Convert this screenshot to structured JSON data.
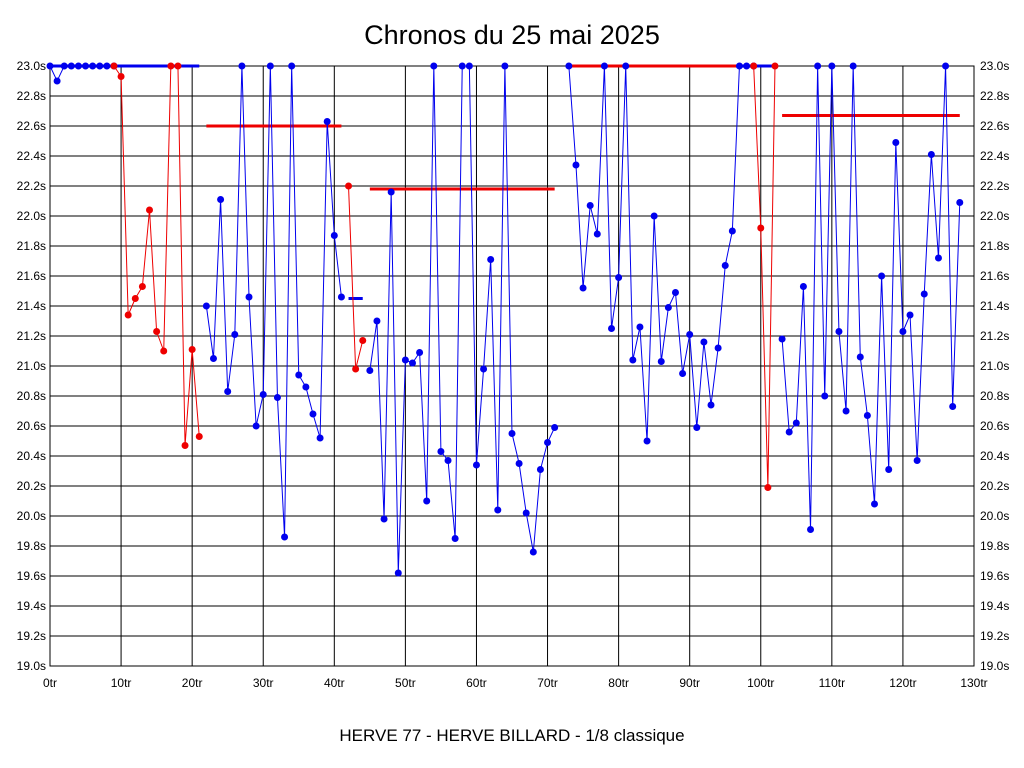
{
  "chart_data": {
    "type": "line",
    "title": "Chronos du 25 mai 2025",
    "subtitle": "HERVE 77 - HERVE BILLARD - 1/8 classique",
    "xlabel": "",
    "ylabel": "",
    "xlim": [
      0,
      130
    ],
    "ylim": [
      19.0,
      23.0
    ],
    "x_ticks": [
      {
        "value": 0,
        "label": "0tr"
      },
      {
        "value": 10,
        "label": "10tr"
      },
      {
        "value": 20,
        "label": "20tr"
      },
      {
        "value": 30,
        "label": "30tr"
      },
      {
        "value": 40,
        "label": "40tr"
      },
      {
        "value": 50,
        "label": "50tr"
      },
      {
        "value": 60,
        "label": "60tr"
      },
      {
        "value": 70,
        "label": "70tr"
      },
      {
        "value": 80,
        "label": "80tr"
      },
      {
        "value": 90,
        "label": "90tr"
      },
      {
        "value": 100,
        "label": "100tr"
      },
      {
        "value": 110,
        "label": "110tr"
      },
      {
        "value": 120,
        "label": "120tr"
      },
      {
        "value": 130,
        "label": "130tr"
      }
    ],
    "y_ticks": [
      {
        "value": 19.0,
        "label": "19.0s"
      },
      {
        "value": 19.2,
        "label": "19.2s"
      },
      {
        "value": 19.4,
        "label": "19.4s"
      },
      {
        "value": 19.6,
        "label": "19.6s"
      },
      {
        "value": 19.8,
        "label": "19.8s"
      },
      {
        "value": 20.0,
        "label": "20.0s"
      },
      {
        "value": 20.2,
        "label": "20.2s"
      },
      {
        "value": 20.4,
        "label": "20.4s"
      },
      {
        "value": 20.6,
        "label": "20.6s"
      },
      {
        "value": 20.8,
        "label": "20.8s"
      },
      {
        "value": 21.0,
        "label": "21.0s"
      },
      {
        "value": 21.2,
        "label": "21.2s"
      },
      {
        "value": 21.4,
        "label": "21.4s"
      },
      {
        "value": 21.6,
        "label": "21.6s"
      },
      {
        "value": 21.8,
        "label": "21.8s"
      },
      {
        "value": 22.0,
        "label": "22.0s"
      },
      {
        "value": 22.2,
        "label": "22.2s"
      },
      {
        "value": 22.4,
        "label": "22.4s"
      },
      {
        "value": 22.6,
        "label": "22.6s"
      },
      {
        "value": 22.8,
        "label": "22.8s"
      },
      {
        "value": 23.0,
        "label": "23.0s"
      }
    ],
    "grid": true,
    "colors": {
      "blue": "#0000ee",
      "red": "#ee0000",
      "grid": "#000000"
    },
    "series": [
      {
        "color": "#0000ee",
        "points": [
          [
            0,
            23.0
          ],
          [
            1,
            22.9
          ],
          [
            2,
            23.0
          ],
          [
            3,
            23.0
          ],
          [
            4,
            23.0
          ],
          [
            5,
            23.0
          ],
          [
            6,
            23.0
          ],
          [
            7,
            23.0
          ],
          [
            8,
            23.0
          ],
          [
            9,
            23.0
          ]
        ]
      },
      {
        "color": "#ee0000",
        "points": [
          [
            9,
            23.0
          ],
          [
            10,
            22.93
          ],
          [
            11,
            21.34
          ],
          [
            12,
            21.45
          ],
          [
            13,
            21.53
          ],
          [
            14,
            22.04
          ],
          [
            15,
            21.23
          ],
          [
            16,
            21.1
          ],
          [
            17,
            23.0
          ],
          [
            18,
            23.0
          ],
          [
            19,
            20.47
          ],
          [
            20,
            21.11
          ],
          [
            21,
            20.53
          ]
        ]
      },
      {
        "color": "#0000ee",
        "points": [
          [
            22,
            21.4
          ],
          [
            23,
            21.05
          ],
          [
            24,
            22.11
          ],
          [
            25,
            20.83
          ],
          [
            26,
            21.21
          ],
          [
            27,
            23.0
          ],
          [
            28,
            21.46
          ],
          [
            29,
            20.6
          ],
          [
            30,
            20.81
          ],
          [
            31,
            23.0
          ],
          [
            32,
            20.79
          ],
          [
            33,
            19.86
          ],
          [
            34,
            23.0
          ],
          [
            35,
            20.94
          ],
          [
            36,
            20.86
          ],
          [
            37,
            20.68
          ],
          [
            38,
            20.52
          ],
          [
            39,
            22.63
          ],
          [
            40,
            21.87
          ],
          [
            41,
            21.46
          ]
        ]
      },
      {
        "color": "#ee0000",
        "points": [
          [
            42,
            22.2
          ],
          [
            43,
            20.98
          ],
          [
            44,
            21.17
          ]
        ]
      },
      {
        "color": "#0000ee",
        "points": [
          [
            45,
            20.97
          ],
          [
            46,
            21.3
          ],
          [
            47,
            19.98
          ],
          [
            48,
            22.16
          ],
          [
            49,
            19.62
          ],
          [
            50,
            21.04
          ],
          [
            51,
            21.02
          ],
          [
            52,
            21.09
          ],
          [
            53,
            20.1
          ],
          [
            54,
            23.0
          ],
          [
            55,
            20.43
          ],
          [
            56,
            20.37
          ],
          [
            57,
            19.85
          ],
          [
            58,
            23.0
          ],
          [
            59,
            23.0
          ],
          [
            60,
            20.34
          ],
          [
            61,
            20.98
          ],
          [
            62,
            21.71
          ],
          [
            63,
            20.04
          ],
          [
            64,
            23.0
          ],
          [
            65,
            20.55
          ],
          [
            66,
            20.35
          ],
          [
            67,
            20.02
          ],
          [
            68,
            19.76
          ],
          [
            69,
            20.31
          ],
          [
            70,
            20.49
          ],
          [
            71,
            20.59
          ]
        ]
      },
      {
        "color": "#0000ee",
        "points": [
          [
            73,
            23.0
          ],
          [
            74,
            22.34
          ],
          [
            75,
            21.52
          ],
          [
            76,
            22.07
          ],
          [
            77,
            21.88
          ],
          [
            78,
            23.0
          ],
          [
            79,
            21.25
          ],
          [
            80,
            21.59
          ],
          [
            81,
            23.0
          ],
          [
            82,
            21.04
          ],
          [
            83,
            21.26
          ],
          [
            84,
            20.5
          ],
          [
            85,
            22.0
          ],
          [
            86,
            21.03
          ],
          [
            87,
            21.39
          ],
          [
            88,
            21.49
          ],
          [
            89,
            20.95
          ],
          [
            90,
            21.21
          ],
          [
            91,
            20.59
          ],
          [
            92,
            21.16
          ],
          [
            93,
            20.74
          ],
          [
            94,
            21.12
          ],
          [
            95,
            21.67
          ],
          [
            96,
            21.9
          ],
          [
            97,
            23.0
          ],
          [
            98,
            23.0
          ],
          [
            99,
            23.0
          ]
        ]
      },
      {
        "color": "#ee0000",
        "points": [
          [
            99,
            23.0
          ],
          [
            100,
            21.92
          ],
          [
            101,
            20.19
          ],
          [
            102,
            23.0
          ]
        ]
      },
      {
        "color": "#0000ee",
        "points": [
          [
            103,
            21.18
          ],
          [
            104,
            20.56
          ],
          [
            105,
            20.62
          ],
          [
            106,
            21.53
          ],
          [
            107,
            19.91
          ],
          [
            108,
            23.0
          ],
          [
            109,
            20.8
          ],
          [
            110,
            23.0
          ],
          [
            111,
            21.23
          ],
          [
            112,
            20.7
          ],
          [
            113,
            23.0
          ],
          [
            114,
            21.06
          ],
          [
            115,
            20.67
          ],
          [
            116,
            20.08
          ],
          [
            117,
            21.6
          ],
          [
            118,
            20.31
          ],
          [
            119,
            22.49
          ],
          [
            120,
            21.23
          ],
          [
            121,
            21.34
          ],
          [
            122,
            20.37
          ],
          [
            123,
            21.48
          ],
          [
            124,
            22.41
          ],
          [
            125,
            21.72
          ],
          [
            126,
            23.0
          ],
          [
            127,
            20.73
          ],
          [
            128,
            22.09
          ]
        ]
      }
    ],
    "average_lines": [
      {
        "color": "#0000ee",
        "x": [
          0,
          21
        ],
        "y": 23.0
      },
      {
        "color": "#ee0000",
        "x": [
          22,
          41
        ],
        "y": 22.6
      },
      {
        "color": "#0000ee",
        "x": [
          42,
          44
        ],
        "y": 21.45
      },
      {
        "color": "#ee0000",
        "x": [
          45,
          71
        ],
        "y": 22.18
      },
      {
        "color": "#ee0000",
        "x": [
          73,
          97
        ],
        "y": 23.0
      },
      {
        "color": "#0000ee",
        "x": [
          97,
          102
        ],
        "y": 23.0
      },
      {
        "color": "#ee0000",
        "x": [
          103,
          128
        ],
        "y": 22.67
      }
    ]
  }
}
